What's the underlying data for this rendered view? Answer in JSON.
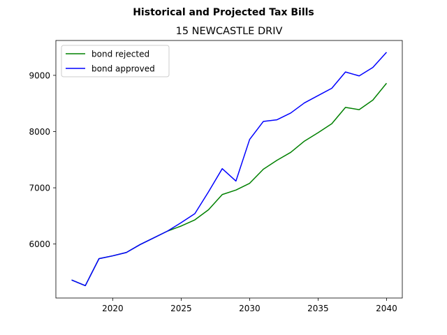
{
  "chart_data": {
    "type": "line",
    "suptitle": "Historical and Projected Tax Bills",
    "title": "15 NEWCASTLE DRIV",
    "xlabel": "",
    "ylabel": "",
    "xlim": [
      2015.85,
      2041.15
    ],
    "ylim": [
      5040,
      9620
    ],
    "xticks": [
      2020,
      2025,
      2030,
      2035,
      2040
    ],
    "yticks": [
      6000,
      7000,
      8000,
      9000
    ],
    "x": [
      2017,
      2018,
      2019,
      2020,
      2021,
      2022,
      2023,
      2024,
      2025,
      2026,
      2027,
      2028,
      2029,
      2030,
      2031,
      2032,
      2033,
      2034,
      2035,
      2036,
      2037,
      2038,
      2039,
      2040
    ],
    "legend_position": "upper-left",
    "grid": false,
    "series": [
      {
        "name": "bond rejected",
        "color": "#008000",
        "values": [
          5360,
          5260,
          5740,
          5790,
          5850,
          5990,
          6110,
          6230,
          6320,
          6430,
          6610,
          6880,
          6960,
          7080,
          7330,
          7490,
          7630,
          7830,
          7980,
          8140,
          8430,
          8390,
          8560,
          8860
        ]
      },
      {
        "name": "bond approved",
        "color": "#0000ff",
        "values": [
          5360,
          5260,
          5740,
          5790,
          5850,
          5990,
          6110,
          6230,
          6380,
          6540,
          6930,
          7340,
          7120,
          7860,
          8180,
          8210,
          8330,
          8510,
          8640,
          8770,
          9060,
          8990,
          9140,
          9410
        ]
      }
    ]
  }
}
